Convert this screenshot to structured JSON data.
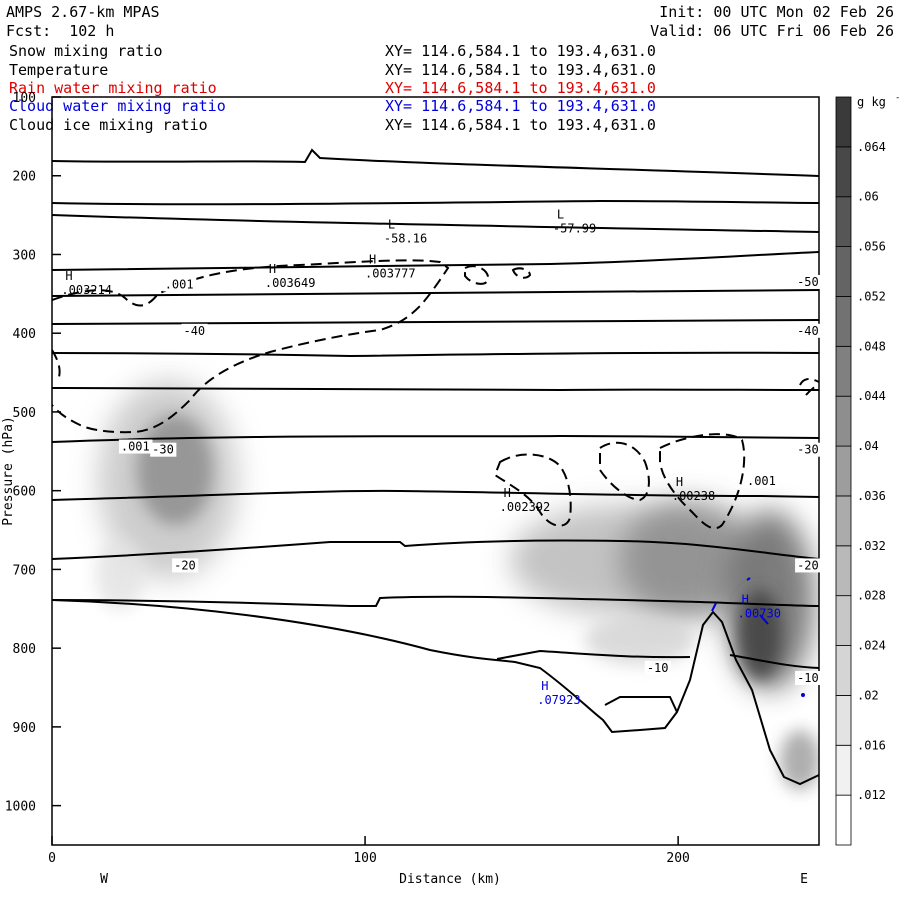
{
  "header": {
    "model": "AMPS 2.67-km MPAS",
    "init": "Init: 00 UTC Mon 02 Feb 26",
    "fcst": "Fcst:  102 h",
    "valid": "Valid: 06 UTC Fri 06 Feb 26",
    "fields": [
      {
        "name": "Snow mixing ratio",
        "xy": "XY= 114.6,584.1 to 193.4,631.0",
        "color": "#000000"
      },
      {
        "name": "Temperature",
        "xy": "XY= 114.6,584.1 to 193.4,631.0",
        "color": "#000000"
      },
      {
        "name": "Rain water mixing ratio",
        "xy": "XY= 114.6,584.1 to 193.4,631.0",
        "color": "#e00000"
      },
      {
        "name": "Cloud water mixing ratio",
        "xy": "XY= 114.6,584.1 to 193.4,631.0",
        "color": "#0000dd"
      },
      {
        "name": "Cloud ice mixing ratio",
        "xy": "XY= 114.6,584.1 to 193.4,631.0",
        "color": "#000000"
      }
    ]
  },
  "chart_data": {
    "type": "contour cross-section",
    "xlabel": "Distance (km)",
    "ylabel": "Pressure (hPa)",
    "xlim": [
      0,
      245
    ],
    "ylim": [
      1050,
      100
    ],
    "x_ticks": [
      "0",
      "100",
      "200"
    ],
    "x_tick_values": [
      0,
      100,
      200
    ],
    "y_ticks": [
      "100",
      "200",
      "300",
      "400",
      "500",
      "600",
      "700",
      "800",
      "900",
      "1000"
    ],
    "y_tick_values": [
      100,
      200,
      300,
      400,
      500,
      600,
      700,
      800,
      900,
      1000
    ],
    "west_label": "W",
    "east_label": "E",
    "colorbar": {
      "unit": "g kg",
      "unit_exp": "-1",
      "levels": [
        ".012",
        ".016",
        ".02",
        ".024",
        ".028",
        ".032",
        ".036",
        ".04",
        ".044",
        ".048",
        ".052",
        ".056",
        ".06",
        ".064"
      ],
      "level_values": [
        0.012,
        0.016,
        0.02,
        0.024,
        0.028,
        0.032,
        0.036,
        0.04,
        0.044,
        0.048,
        0.052,
        0.056,
        0.06,
        0.064
      ]
    },
    "temperature_contour_labels": [
      {
        "text": "-50",
        "x": 238,
        "p": 340
      },
      {
        "text": "-40",
        "x": 42,
        "p": 402
      },
      {
        "text": "-40",
        "x": 238,
        "p": 402
      },
      {
        "text": "-30",
        "x": 32,
        "p": 553
      },
      {
        "text": "-30",
        "x": 238,
        "p": 553
      },
      {
        "text": "-20",
        "x": 39,
        "p": 700
      },
      {
        "text": "-20",
        "x": 238,
        "p": 700
      },
      {
        "text": "-10",
        "x": 190,
        "p": 830
      },
      {
        "text": "-10",
        "x": 238,
        "p": 843
      }
    ],
    "snow_contour_labels": [
      {
        "text": ".001",
        "x": 36,
        "p": 343
      },
      {
        "text": ".001",
        "x": 22,
        "p": 549
      },
      {
        "text": ".001",
        "x": 222,
        "p": 593
      }
    ],
    "extrema": [
      {
        "kind": "H",
        "value": ".003214",
        "x": 3,
        "p": 350,
        "color": "#000000"
      },
      {
        "kind": "H",
        "value": ".003649",
        "x": 68,
        "p": 341,
        "color": "#000000"
      },
      {
        "kind": "H",
        "value": ".003777",
        "x": 100,
        "p": 329,
        "color": "#000000"
      },
      {
        "kind": "L",
        "value": "-58.16",
        "x": 106,
        "p": 285,
        "color": "#000000"
      },
      {
        "kind": "L",
        "value": "-57.99",
        "x": 160,
        "p": 272,
        "color": "#000000"
      },
      {
        "kind": "H",
        "value": ".002392",
        "x": 143,
        "p": 626,
        "color": "#000000"
      },
      {
        "kind": "H",
        "value": ".00238",
        "x": 198,
        "p": 612,
        "color": "#000000"
      },
      {
        "kind": "H",
        "value": ".00730",
        "x": 219,
        "p": 761,
        "color": "#0000dd"
      },
      {
        "kind": "H",
        "value": ".07923",
        "x": 155,
        "p": 871,
        "color": "#0000dd"
      }
    ]
  }
}
